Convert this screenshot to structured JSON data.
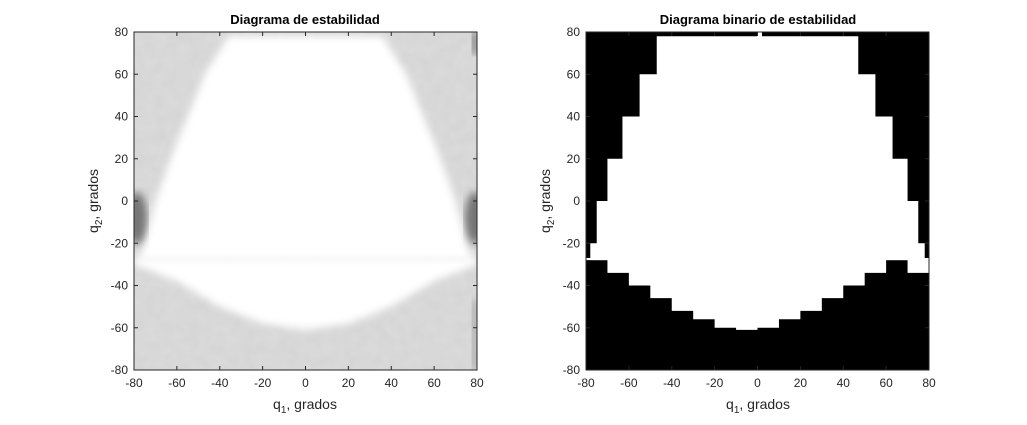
{
  "chart_data": [
    {
      "type": "heatmap",
      "title": "Diagrama de estabilidad",
      "xlabel_main": "q",
      "xlabel_sub": "1",
      "xlabel_tail": ", grados",
      "ylabel_main": "q",
      "ylabel_sub": "2",
      "ylabel_tail": ", grados",
      "xlim": [
        -80,
        80
      ],
      "ylim": [
        -80,
        80
      ],
      "xticks": [
        "-80",
        "-60",
        "-40",
        "-20",
        "0",
        "20",
        "40",
        "60",
        "80"
      ],
      "yticks": [
        "-80",
        "-60",
        "-40",
        "-20",
        "0",
        "20",
        "40",
        "60",
        "80"
      ],
      "colormap": "grayscale (white = stable, gray/black = unstable)",
      "stable_region_top": {
        "y_upper": 78,
        "y_lower": -28,
        "boundary_left": [
          [
            -36,
            78
          ],
          [
            -47,
            60
          ],
          [
            -55,
            40
          ],
          [
            -63,
            20
          ],
          [
            -70,
            0
          ],
          [
            -75,
            -20
          ],
          [
            -78,
            -28
          ]
        ],
        "boundary_right": [
          [
            36,
            78
          ],
          [
            47,
            60
          ],
          [
            55,
            40
          ],
          [
            63,
            20
          ],
          [
            70,
            0
          ],
          [
            75,
            -20
          ],
          [
            78,
            -28
          ]
        ]
      },
      "stable_region_bottom_curve": [
        [
          -80,
          -30
        ],
        [
          -60,
          -38
        ],
        [
          -40,
          -50
        ],
        [
          -20,
          -58
        ],
        [
          0,
          -61
        ],
        [
          20,
          -58
        ],
        [
          40,
          -50
        ],
        [
          60,
          -38
        ],
        [
          80,
          -30
        ]
      ],
      "grid": false
    },
    {
      "type": "heatmap",
      "title": "Diagrama binario de estabilidad",
      "xlabel_main": "q",
      "xlabel_sub": "1",
      "xlabel_tail": ", grados",
      "ylabel_main": "q",
      "ylabel_sub": "2",
      "ylabel_tail": ", grados",
      "xlim": [
        -80,
        80
      ],
      "ylim": [
        -80,
        80
      ],
      "xticks": [
        "-80",
        "-60",
        "-40",
        "-20",
        "0",
        "20",
        "40",
        "60",
        "80"
      ],
      "yticks": [
        "-80",
        "-60",
        "-40",
        "-20",
        "0",
        "20",
        "40",
        "60",
        "80"
      ],
      "colormap": "binary (white = stable, black = unstable)",
      "stable_region_top": {
        "y_upper": 78,
        "y_lower": -28,
        "boundary_left": [
          [
            -36,
            78
          ],
          [
            -47,
            60
          ],
          [
            -55,
            40
          ],
          [
            -63,
            20
          ],
          [
            -70,
            0
          ],
          [
            -75,
            -20
          ],
          [
            -78,
            -28
          ]
        ],
        "boundary_right": [
          [
            36,
            78
          ],
          [
            47,
            60
          ],
          [
            55,
            40
          ],
          [
            63,
            20
          ],
          [
            70,
            0
          ],
          [
            75,
            -20
          ],
          [
            78,
            -28
          ]
        ]
      },
      "stable_region_bottom_curve": [
        [
          -80,
          -34
        ],
        [
          -70,
          -28
        ],
        [
          -60,
          -34
        ],
        [
          -50,
          -40
        ],
        [
          -40,
          -46
        ],
        [
          -30,
          -52
        ],
        [
          -20,
          -56
        ],
        [
          -10,
          -60
        ],
        [
          0,
          -61
        ],
        [
          10,
          -60
        ],
        [
          20,
          -56
        ],
        [
          30,
          -52
        ],
        [
          40,
          -46
        ],
        [
          50,
          -40
        ],
        [
          60,
          -34
        ],
        [
          70,
          -28
        ],
        [
          80,
          -34
        ]
      ],
      "grid": false
    }
  ]
}
